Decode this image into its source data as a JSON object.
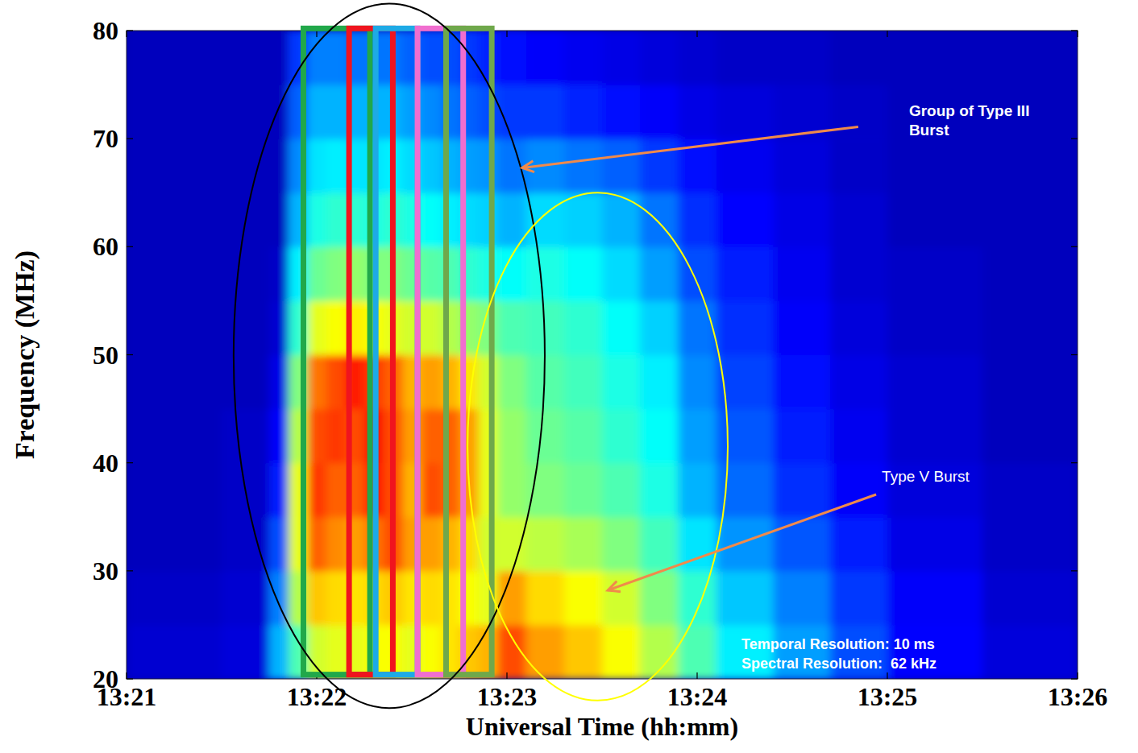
{
  "chart_data": {
    "type": "spectrogram",
    "x_label": "Universal Time (hh:mm)",
    "y_label": "Frequency (MHz)",
    "xlim": [
      801,
      806
    ],
    "xticks": [
      {
        "value": 801,
        "label": "13:21"
      },
      {
        "value": 802,
        "label": "13:22"
      },
      {
        "value": 803,
        "label": "13:23"
      },
      {
        "value": 804,
        "label": "13:24"
      },
      {
        "value": 805,
        "label": "13:25"
      },
      {
        "value": 806,
        "label": "13:26"
      }
    ],
    "ylim": [
      20,
      80
    ],
    "yticks": [
      20,
      30,
      40,
      50,
      60,
      70,
      80
    ],
    "time_edges": [
      801.0,
      801.5,
      801.75,
      801.85,
      801.95,
      802.05,
      802.15,
      802.25,
      802.35,
      802.45,
      802.55,
      802.65,
      802.75,
      802.85,
      802.95,
      803.1,
      803.3,
      803.5,
      803.7,
      803.9,
      804.1,
      804.4,
      804.7,
      805.0,
      805.5,
      806.0
    ],
    "frequency_edges": [
      20,
      25,
      30,
      35,
      40,
      45,
      50,
      55,
      60,
      65,
      70,
      75,
      80
    ],
    "intensity_range": [
      0,
      1
    ],
    "intensity": [
      [
        0.08,
        0.07,
        0.06,
        0.06,
        0.06,
        0.06,
        0.06,
        0.06,
        0.06,
        0.06,
        0.06,
        0.06
      ],
      [
        0.09,
        0.08,
        0.07,
        0.07,
        0.07,
        0.06,
        0.06,
        0.06,
        0.06,
        0.06,
        0.06,
        0.06
      ],
      [
        0.3,
        0.25,
        0.2,
        0.15,
        0.12,
        0.1,
        0.08,
        0.07,
        0.06,
        0.06,
        0.06,
        0.06
      ],
      [
        0.45,
        0.55,
        0.6,
        0.6,
        0.55,
        0.5,
        0.42,
        0.36,
        0.3,
        0.26,
        0.22,
        0.18
      ],
      [
        0.58,
        0.68,
        0.78,
        0.82,
        0.8,
        0.76,
        0.6,
        0.48,
        0.4,
        0.35,
        0.3,
        0.25
      ],
      [
        0.6,
        0.66,
        0.74,
        0.78,
        0.82,
        0.8,
        0.62,
        0.5,
        0.42,
        0.36,
        0.3,
        0.25
      ],
      [
        0.6,
        0.65,
        0.72,
        0.78,
        0.8,
        0.85,
        0.64,
        0.52,
        0.42,
        0.35,
        0.3,
        0.24
      ],
      [
        0.62,
        0.66,
        0.76,
        0.86,
        0.88,
        0.82,
        0.62,
        0.5,
        0.4,
        0.35,
        0.3,
        0.24
      ],
      [
        0.62,
        0.68,
        0.8,
        0.8,
        0.8,
        0.78,
        0.6,
        0.5,
        0.42,
        0.36,
        0.3,
        0.24
      ],
      [
        0.6,
        0.65,
        0.72,
        0.7,
        0.72,
        0.7,
        0.58,
        0.48,
        0.4,
        0.34,
        0.28,
        0.22
      ],
      [
        0.62,
        0.66,
        0.72,
        0.8,
        0.78,
        0.72,
        0.58,
        0.46,
        0.38,
        0.32,
        0.26,
        0.2
      ],
      [
        0.65,
        0.65,
        0.7,
        0.78,
        0.78,
        0.7,
        0.55,
        0.45,
        0.36,
        0.3,
        0.24,
        0.2
      ],
      [
        0.68,
        0.62,
        0.66,
        0.72,
        0.72,
        0.65,
        0.52,
        0.42,
        0.34,
        0.28,
        0.22,
        0.18
      ],
      [
        0.7,
        0.6,
        0.58,
        0.6,
        0.6,
        0.58,
        0.5,
        0.4,
        0.33,
        0.27,
        0.2,
        0.16
      ],
      [
        0.8,
        0.72,
        0.58,
        0.52,
        0.52,
        0.5,
        0.45,
        0.38,
        0.3,
        0.24,
        0.18,
        0.14
      ],
      [
        0.72,
        0.66,
        0.56,
        0.5,
        0.48,
        0.46,
        0.44,
        0.4,
        0.34,
        0.26,
        0.18,
        0.12
      ],
      [
        0.68,
        0.62,
        0.54,
        0.48,
        0.46,
        0.44,
        0.42,
        0.38,
        0.33,
        0.24,
        0.16,
        0.11
      ],
      [
        0.62,
        0.58,
        0.5,
        0.45,
        0.42,
        0.4,
        0.38,
        0.34,
        0.3,
        0.22,
        0.14,
        0.1
      ],
      [
        0.55,
        0.5,
        0.44,
        0.4,
        0.38,
        0.36,
        0.33,
        0.28,
        0.24,
        0.18,
        0.12,
        0.09
      ],
      [
        0.45,
        0.42,
        0.35,
        0.3,
        0.28,
        0.26,
        0.24,
        0.2,
        0.17,
        0.14,
        0.1,
        0.08
      ],
      [
        0.36,
        0.32,
        0.27,
        0.23,
        0.21,
        0.19,
        0.17,
        0.15,
        0.13,
        0.11,
        0.09,
        0.07
      ],
      [
        0.28,
        0.25,
        0.21,
        0.17,
        0.15,
        0.14,
        0.12,
        0.11,
        0.1,
        0.09,
        0.08,
        0.07
      ],
      [
        0.2,
        0.18,
        0.15,
        0.12,
        0.11,
        0.1,
        0.09,
        0.08,
        0.08,
        0.07,
        0.07,
        0.06
      ],
      [
        0.13,
        0.12,
        0.1,
        0.09,
        0.08,
        0.08,
        0.07,
        0.07,
        0.06,
        0.06,
        0.06,
        0.06
      ],
      [
        0.09,
        0.08,
        0.07,
        0.07,
        0.06,
        0.06,
        0.06,
        0.06,
        0.06,
        0.06,
        0.06,
        0.06
      ]
    ],
    "boxes": [
      {
        "start": 801.93,
        "end": 802.28,
        "low": 20.4,
        "high": 80.2,
        "color": "#21a84a"
      },
      {
        "start": 802.17,
        "end": 802.4,
        "low": 20.4,
        "high": 80.2,
        "color": "#f0141e"
      },
      {
        "start": 802.31,
        "end": 802.53,
        "low": 20.4,
        "high": 80.2,
        "color": "#1eaae6"
      },
      {
        "start": 802.53,
        "end": 802.77,
        "low": 20.4,
        "high": 80.2,
        "color": "#f06ecf"
      },
      {
        "start": 802.68,
        "end": 802.92,
        "low": 20.4,
        "high": 80.2,
        "color": "#6fa84b"
      }
    ],
    "regions": [
      {
        "center": [
          802.381,
          49.9
        ],
        "half_width": 0.818,
        "half_height": 32.6,
        "color": "#000000"
      },
      {
        "center": [
          803.477,
          41.5
        ],
        "half_width": 0.684,
        "half_height": 23.5,
        "color": "#ffff00"
      }
    ],
    "annotations": [
      {
        "text": "Group of Type III Burst",
        "x": 803.08,
        "y": 67.3
      },
      {
        "text": "Type V Burst",
        "x": 803.53,
        "y": 28.2
      }
    ],
    "resolution_labels": [
      "Temporal Resolution: 10 ms",
      "Spectral Resolution:  62 kHz"
    ]
  }
}
